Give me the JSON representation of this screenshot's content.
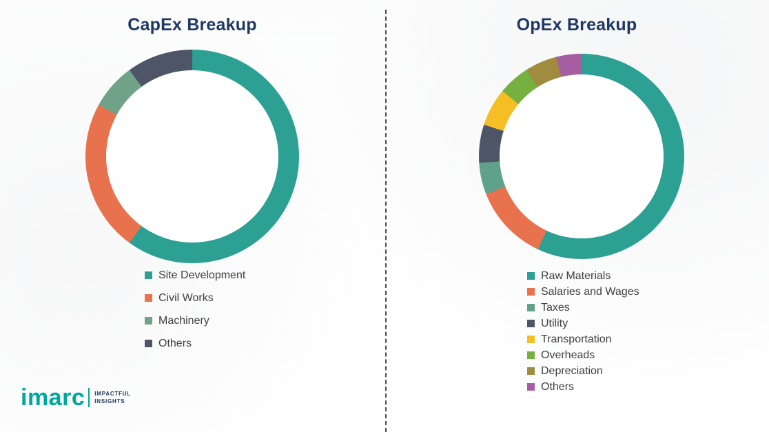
{
  "chart_data": [
    {
      "type": "donut",
      "title": "CapEx Breakup",
      "labels": [
        "Site Development",
        "Civil Works",
        "Machinery",
        "Others"
      ],
      "values": [
        60,
        23,
        7,
        10
      ],
      "colors": [
        "#2BA093",
        "#E8714E",
        "#6FA287",
        "#4E5566"
      ],
      "legend_position": "bottom-left",
      "hole": true
    },
    {
      "type": "donut",
      "title": "OpEx Breakup",
      "labels": [
        "Raw Materials",
        "Salaries and Wages",
        "Taxes",
        "Utility",
        "Transportation",
        "Overheads",
        "Depreciation",
        "Others"
      ],
      "values": [
        57,
        12,
        5,
        6,
        6,
        5,
        5,
        4
      ],
      "colors": [
        "#2BA093",
        "#E8714E",
        "#5FA189",
        "#4E5566",
        "#F5BE25",
        "#76B041",
        "#A08C3E",
        "#A55FA0"
      ],
      "legend_position": "bottom-left",
      "hole": true
    }
  ],
  "logo": {
    "brand": "imarc",
    "tagline_line1": "IMPACTFUL",
    "tagline_line2": "INSIGHTS",
    "brand_color": "#00A79B",
    "tagline_color": "#1F3864"
  },
  "style_colors": {
    "title": "#1F3864",
    "legend_text": "#404040",
    "divider": "#4a4a4a"
  }
}
